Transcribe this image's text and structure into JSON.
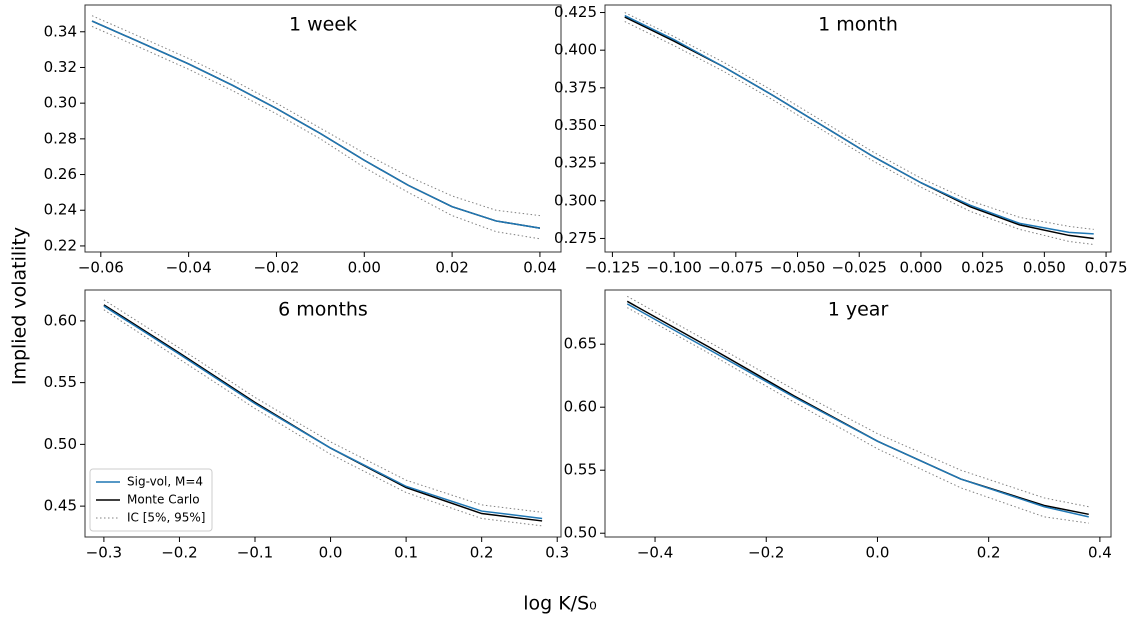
{
  "figure": {
    "ylabel": "Implied volatility",
    "xlabel": "log K/S₀"
  },
  "chart_data": [
    {
      "type": "line",
      "title": "1 week",
      "x": [
        -0.062,
        -0.05,
        -0.04,
        -0.03,
        -0.02,
        -0.01,
        0,
        0.01,
        0.02,
        0.03,
        0.04
      ],
      "series": [
        {
          "name": "Sig-vol, M=4",
          "color": "#1f77b4",
          "values": [
            0.346,
            0.333,
            0.322,
            0.31,
            0.297,
            0.283,
            0.268,
            0.254,
            0.242,
            0.234,
            0.23
          ]
        },
        {
          "name": "Monte Carlo",
          "color": "#000000",
          "values": [
            0.346,
            0.333,
            0.322,
            0.31,
            0.297,
            0.283,
            0.268,
            0.254,
            0.242,
            0.234,
            0.23
          ]
        },
        {
          "name": "IC [5%, 95%]",
          "color": "#808080",
          "linestyle": "dotted",
          "lower": [
            0.343,
            0.33,
            0.319,
            0.307,
            0.294,
            0.28,
            0.264,
            0.25,
            0.237,
            0.228,
            0.224
          ],
          "upper": [
            0.349,
            0.336,
            0.325,
            0.313,
            0.3,
            0.286,
            0.272,
            0.259,
            0.248,
            0.24,
            0.237
          ]
        }
      ],
      "xlim": [
        -0.0636,
        0.0448
      ],
      "ylim": [
        0.2166,
        0.355
      ],
      "xticks": [
        {
          "value": -0.06,
          "label": "−0.06"
        },
        {
          "value": -0.04,
          "label": "−0.04"
        },
        {
          "value": -0.02,
          "label": "−0.02"
        },
        {
          "value": 0,
          "label": "0.00"
        },
        0.02,
        0.04
      ],
      "yticks": [
        0.22,
        0.24,
        0.26,
        0.28,
        {
          "value": 0.3,
          "label": "0.30"
        },
        0.32,
        0.34
      ]
    },
    {
      "type": "line",
      "title": "1 month",
      "x": [
        -0.12,
        -0.1,
        -0.08,
        -0.06,
        -0.04,
        -0.02,
        0,
        0.02,
        0.04,
        0.06,
        0.07
      ],
      "series": [
        {
          "name": "Sig-vol, M=4",
          "color": "#1f77b4",
          "values": [
            0.423,
            0.407,
            0.389,
            0.37,
            0.35,
            0.33,
            0.312,
            0.297,
            0.285,
            0.279,
            0.278
          ]
        },
        {
          "name": "Monte Carlo",
          "color": "#000000",
          "values": [
            0.422,
            0.406,
            0.389,
            0.37,
            0.35,
            0.33,
            0.312,
            0.296,
            0.284,
            0.277,
            0.275
          ]
        },
        {
          "name": "IC [5%, 95%]",
          "color": "#808080",
          "linestyle": "dotted",
          "lower": [
            0.419,
            0.403,
            0.386,
            0.367,
            0.347,
            0.327,
            0.309,
            0.293,
            0.281,
            0.273,
            0.271
          ],
          "upper": [
            0.425,
            0.409,
            0.392,
            0.373,
            0.353,
            0.333,
            0.315,
            0.3,
            0.289,
            0.283,
            0.281
          ]
        }
      ],
      "xlim": [
        -0.128,
        0.077
      ],
      "ylim": [
        0.266,
        0.43
      ],
      "xticks": [
        {
          "value": -0.125,
          "label": "−0.125"
        },
        {
          "value": -0.1,
          "label": "−0.100"
        },
        {
          "value": -0.075,
          "label": "−0.075"
        },
        {
          "value": -0.05,
          "label": "−0.050"
        },
        {
          "value": -0.025,
          "label": "−0.025"
        },
        {
          "value": 0,
          "label": "0.000"
        },
        0.025,
        {
          "value": 0.05,
          "label": "0.050"
        },
        0.075
      ],
      "yticks": [
        0.275,
        {
          "value": 0.3,
          "label": "0.300"
        },
        0.325,
        {
          "value": 0.35,
          "label": "0.350"
        },
        0.375,
        {
          "value": 0.4,
          "label": "0.400"
        },
        0.425
      ]
    },
    {
      "type": "line",
      "title": "6 months",
      "x": [
        -0.3,
        -0.2,
        -0.1,
        0,
        0.1,
        0.2,
        0.28
      ],
      "series": [
        {
          "name": "Sig-vol, M=4",
          "color": "#1f77b4",
          "values": [
            0.612,
            0.573,
            0.533,
            0.497,
            0.466,
            0.446,
            0.44
          ]
        },
        {
          "name": "Monte Carlo",
          "color": "#000000",
          "values": [
            0.613,
            0.574,
            0.534,
            0.497,
            0.465,
            0.444,
            0.438
          ]
        },
        {
          "name": "IC [5%, 95%]",
          "color": "#808080",
          "linestyle": "dotted",
          "lower": [
            0.609,
            0.569,
            0.529,
            0.492,
            0.461,
            0.44,
            0.434
          ],
          "upper": [
            0.617,
            0.578,
            0.538,
            0.502,
            0.471,
            0.451,
            0.445
          ]
        }
      ],
      "xlim": [
        -0.325,
        0.305
      ],
      "ylim": [
        0.425,
        0.625
      ],
      "xticks": [
        {
          "value": -0.3,
          "label": "−0.3"
        },
        {
          "value": -0.2,
          "label": "−0.2"
        },
        {
          "value": -0.1,
          "label": "−0.1"
        },
        {
          "value": 0,
          "label": "0.0"
        },
        0.1,
        0.2,
        0.3
      ],
      "yticks": [
        0.45,
        {
          "value": 0.5,
          "label": "0.50"
        },
        0.55,
        {
          "value": 0.6,
          "label": "0.60"
        }
      ],
      "legend": "lower left"
    },
    {
      "type": "line",
      "title": "1 year",
      "x": [
        -0.45,
        -0.3,
        -0.15,
        0,
        0.15,
        0.3,
        0.38
      ],
      "series": [
        {
          "name": "Sig-vol, M=4",
          "color": "#1f77b4",
          "values": [
            0.682,
            0.645,
            0.608,
            0.573,
            0.543,
            0.521,
            0.513
          ]
        },
        {
          "name": "Monte Carlo",
          "color": "#000000",
          "values": [
            0.684,
            0.647,
            0.609,
            0.573,
            0.543,
            0.522,
            0.515
          ]
        },
        {
          "name": "IC [5%, 95%]",
          "color": "#808080",
          "linestyle": "dotted",
          "lower": [
            0.679,
            0.642,
            0.604,
            0.567,
            0.536,
            0.513,
            0.508
          ],
          "upper": [
            0.688,
            0.651,
            0.614,
            0.579,
            0.55,
            0.528,
            0.521
          ]
        }
      ],
      "xlim": [
        -0.49,
        0.42
      ],
      "ylim": [
        0.497,
        0.693
      ],
      "xticks": [
        {
          "value": -0.4,
          "label": "−0.4"
        },
        {
          "value": -0.2,
          "label": "−0.2"
        },
        {
          "value": 0,
          "label": "0.0"
        },
        0.2,
        0.4
      ],
      "yticks": [
        {
          "value": 0.5,
          "label": "0.50"
        },
        0.55,
        {
          "value": 0.6,
          "label": "0.60"
        },
        0.65
      ]
    }
  ]
}
